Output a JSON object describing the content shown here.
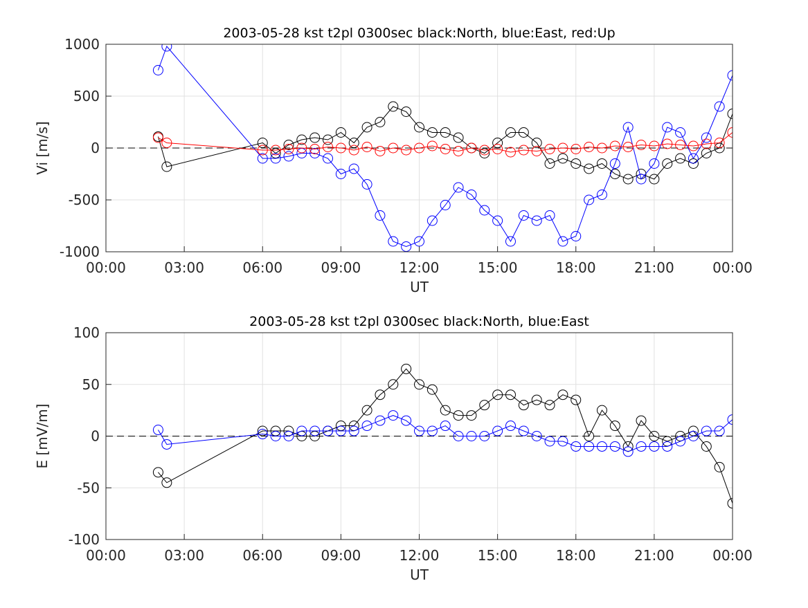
{
  "chart_data": [
    {
      "type": "line",
      "title": "2003-05-28 kst t2pl 0300sec black:North, blue:East, red:Up",
      "xlabel": "UT",
      "ylabel": "Vi [m/s]",
      "x": [
        2.0,
        2.33,
        6.0,
        6.5,
        7.0,
        7.5,
        8.0,
        8.5,
        9.0,
        9.5,
        10.0,
        10.5,
        11.0,
        11.5,
        12.0,
        12.5,
        13.0,
        13.5,
        14.0,
        14.5,
        15.0,
        15.5,
        16.0,
        16.5,
        17.0,
        17.5,
        18.0,
        18.5,
        19.0,
        19.5,
        20.0,
        20.5,
        21.0,
        21.5,
        22.0,
        22.5,
        23.0,
        23.5,
        24.0
      ],
      "series": [
        {
          "color": "#000000",
          "values": [
            110,
            -180,
            50,
            -50,
            30,
            80,
            100,
            80,
            150,
            50,
            200,
            250,
            400,
            350,
            200,
            150,
            150,
            100,
            0,
            -50,
            50,
            150,
            150,
            50,
            -150,
            -100,
            -150,
            -200,
            -150,
            -250,
            -300,
            -250,
            -300,
            -150,
            -100,
            -150,
            -50,
            0,
            330
          ]
        },
        {
          "color": "#0000ff",
          "values": [
            750,
            980,
            -100,
            -100,
            -80,
            -50,
            -50,
            -100,
            -250,
            -200,
            -350,
            -650,
            -900,
            -950,
            -900,
            -700,
            -550,
            -380,
            -450,
            -600,
            -700,
            -900,
            -650,
            -700,
            -650,
            -900,
            -850,
            -500,
            -450,
            -150,
            200,
            -300,
            -150,
            200,
            150,
            -100,
            100,
            400,
            700
          ]
        },
        {
          "color": "#ff0000",
          "values": [
            100,
            50,
            -20,
            -20,
            -10,
            0,
            -10,
            10,
            0,
            -20,
            10,
            -30,
            0,
            -20,
            0,
            20,
            -10,
            -30,
            0,
            -20,
            -10,
            -40,
            -20,
            -30,
            -10,
            0,
            -10,
            10,
            0,
            20,
            10,
            30,
            20,
            40,
            30,
            20,
            40,
            50,
            150
          ]
        }
      ],
      "xlim": [
        0,
        24
      ],
      "ylim": [
        -1000,
        1000
      ],
      "xticks": [
        {
          "value": 0,
          "label": "00:00"
        },
        {
          "value": 3,
          "label": "03:00"
        },
        {
          "value": 6,
          "label": "06:00"
        },
        {
          "value": 9,
          "label": "09:00"
        },
        {
          "value": 12,
          "label": "12:00"
        },
        {
          "value": 15,
          "label": "15:00"
        },
        {
          "value": 18,
          "label": "18:00"
        },
        {
          "value": 21,
          "label": "21:00"
        },
        {
          "value": 24,
          "label": "00:00"
        }
      ],
      "yticks": [
        -1000,
        -500,
        0,
        500,
        1000
      ],
      "grid": true,
      "marker": "circle"
    },
    {
      "type": "line",
      "title": "2003-05-28 kst t2pl 0300sec black:North, blue:East",
      "xlabel": "UT",
      "ylabel": "E [mV/m]",
      "x": [
        2.0,
        2.33,
        6.0,
        6.5,
        7.0,
        7.5,
        8.0,
        8.5,
        9.0,
        9.5,
        10.0,
        10.5,
        11.0,
        11.5,
        12.0,
        12.5,
        13.0,
        13.5,
        14.0,
        14.5,
        15.0,
        15.5,
        16.0,
        16.5,
        17.0,
        17.5,
        18.0,
        18.5,
        19.0,
        19.5,
        20.0,
        20.5,
        21.0,
        21.5,
        22.0,
        22.5,
        23.0,
        23.5,
        24.0
      ],
      "series": [
        {
          "color": "#000000",
          "values": [
            -35,
            -45,
            5,
            5,
            5,
            0,
            0,
            5,
            10,
            10,
            25,
            40,
            50,
            65,
            50,
            45,
            25,
            20,
            20,
            30,
            40,
            40,
            30,
            35,
            30,
            40,
            35,
            0,
            25,
            10,
            -10,
            15,
            0,
            -5,
            0,
            5,
            -10,
            -30,
            -65
          ]
        },
        {
          "color": "#0000ff",
          "values": [
            6,
            -8,
            2,
            0,
            0,
            5,
            5,
            5,
            5,
            5,
            10,
            15,
            20,
            15,
            5,
            5,
            10,
            0,
            0,
            0,
            5,
            10,
            5,
            0,
            -5,
            -5,
            -10,
            -10,
            -10,
            -10,
            -15,
            -10,
            -10,
            -10,
            -5,
            0,
            5,
            5,
            16
          ]
        }
      ],
      "xlim": [
        0,
        24
      ],
      "ylim": [
        -100,
        100
      ],
      "xticks": [
        {
          "value": 0,
          "label": "00:00"
        },
        {
          "value": 3,
          "label": "03:00"
        },
        {
          "value": 6,
          "label": "06:00"
        },
        {
          "value": 9,
          "label": "09:00"
        },
        {
          "value": 12,
          "label": "12:00"
        },
        {
          "value": 15,
          "label": "15:00"
        },
        {
          "value": 18,
          "label": "18:00"
        },
        {
          "value": 21,
          "label": "21:00"
        },
        {
          "value": 24,
          "label": "00:00"
        }
      ],
      "yticks": [
        -100,
        -50,
        0,
        50,
        100
      ],
      "grid": true,
      "marker": "circle"
    }
  ]
}
